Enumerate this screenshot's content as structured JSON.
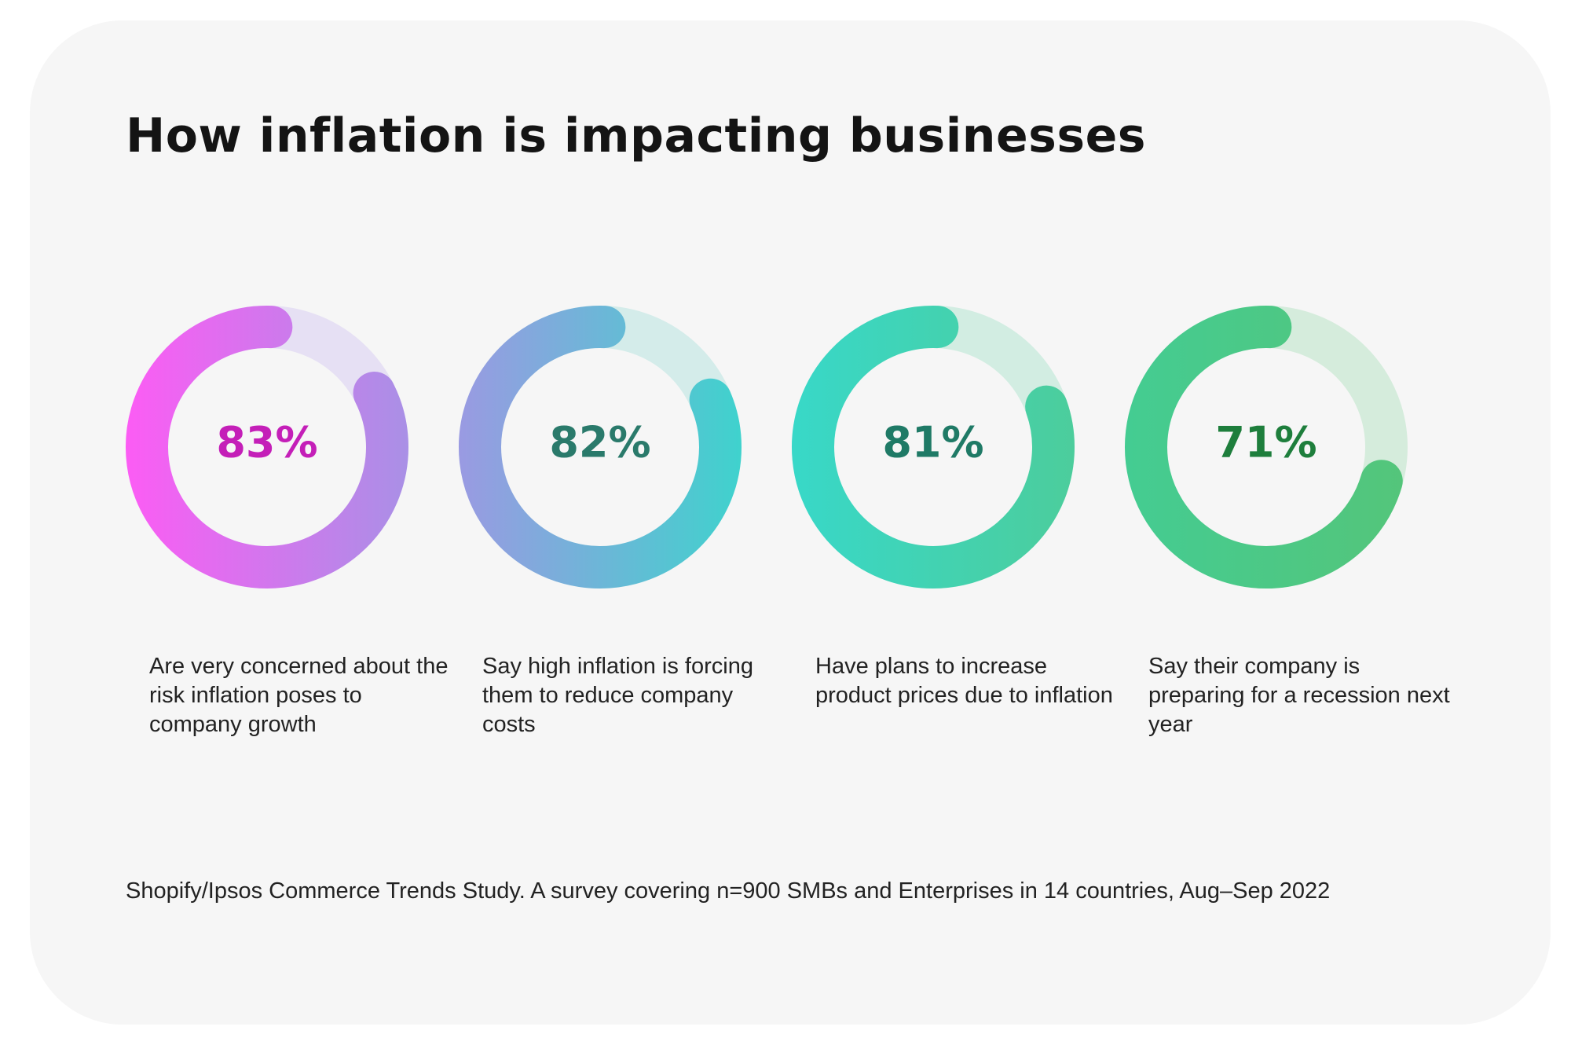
{
  "title": "How inflation is impacting businesses",
  "source": "Shopify/Ipsos Commerce Trends Study. A survey covering n=900 SMBs and Enterprises in 14 countries, Aug–Sep 2022",
  "chart_data": {
    "type": "donut",
    "value_unit": "%",
    "items": [
      {
        "value": 83,
        "label": "83%",
        "description": "Are very concerned about the risk inflation poses to company growth",
        "gradient": [
          "#fc5cf4",
          "#a990e6"
        ],
        "track_color": "#e6e0f4",
        "label_color": "#c41fb8"
      },
      {
        "value": 82,
        "label": "82%",
        "description": "Say high inflation is forcing them to reduce company costs",
        "gradient": [
          "#9a9ae2",
          "#3fd2cd"
        ],
        "track_color": "#d4ecea",
        "label_color": "#2a7a6b"
      },
      {
        "value": 81,
        "label": "81%",
        "description": "Have plans to increase product prices due to inflation",
        "gradient": [
          "#38d8c8",
          "#4ccd9c"
        ],
        "track_color": "#d2ede2",
        "label_color": "#1f7a66"
      },
      {
        "value": 71,
        "label": "71%",
        "description": "Say their company is preparing for a recession next year",
        "gradient": [
          "#44cc92",
          "#54c57a"
        ],
        "track_color": "#d5ecdc",
        "label_color": "#1e7e3c"
      }
    ]
  }
}
